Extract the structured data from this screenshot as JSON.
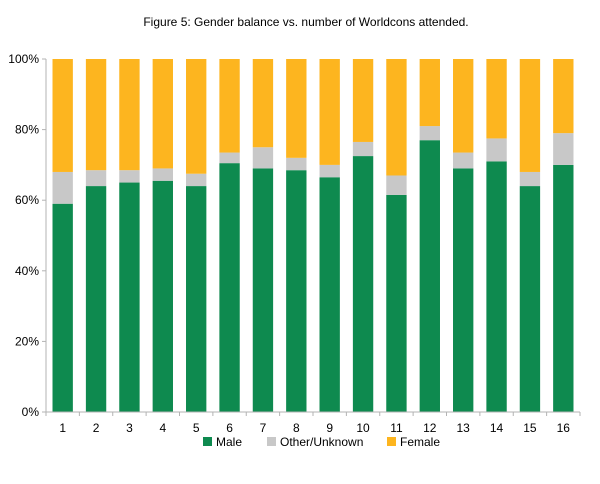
{
  "chart_data": {
    "type": "bar",
    "stacked": true,
    "percent": true,
    "title": "Figure 5: Gender balance vs. number of Worldcons attended.",
    "xlabel": "",
    "ylabel": "",
    "categories": [
      "1",
      "2",
      "3",
      "4",
      "5",
      "6",
      "7",
      "8",
      "9",
      "10",
      "11",
      "12",
      "13",
      "14",
      "15",
      "16"
    ],
    "ylim": [
      0,
      100
    ],
    "yticks": [
      0,
      20,
      40,
      60,
      80,
      100
    ],
    "ytick_labels": [
      "0%",
      "20%",
      "40%",
      "60%",
      "80%",
      "100%"
    ],
    "grid": false,
    "legend_position": "bottom",
    "series": [
      {
        "name": "Male",
        "color": "#0e8a4f",
        "values": [
          59,
          64,
          65,
          65.5,
          64,
          70.5,
          69,
          68.5,
          66.5,
          72.5,
          61.5,
          77,
          69,
          71,
          64,
          70
        ]
      },
      {
        "name": "Other/Unknown",
        "color": "#c8c8c8",
        "values": [
          9,
          4.5,
          3.5,
          3.5,
          3.5,
          3,
          6,
          3.5,
          3.5,
          4,
          5.5,
          4,
          4.5,
          6.5,
          4,
          9
        ]
      },
      {
        "name": "Female",
        "color": "#fdb51f",
        "values": [
          32,
          31.5,
          31.5,
          31,
          32.5,
          26.5,
          25,
          28,
          30,
          23.5,
          33,
          19,
          26.5,
          22.5,
          32,
          21
        ]
      }
    ]
  }
}
